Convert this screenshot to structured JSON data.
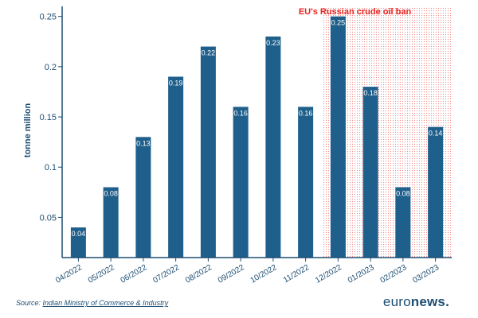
{
  "chart_data": {
    "type": "bar",
    "title": "",
    "xlabel": "",
    "ylabel": "tonne million",
    "ylim": [
      0.01,
      0.26
    ],
    "yticks": [
      0.05,
      0.1,
      0.15,
      0.2,
      0.25
    ],
    "ytick_labels": [
      "0.05",
      "0.1",
      "0.15",
      "0.2",
      "0.25"
    ],
    "categories": [
      "04/2022",
      "05/2022",
      "06/2022",
      "07/2022",
      "08/2022",
      "09/2022",
      "10/2022",
      "11/2022",
      "12/2022",
      "01/2023",
      "02/2023",
      "03/2023"
    ],
    "values": [
      0.04,
      0.08,
      0.13,
      0.19,
      0.22,
      0.16,
      0.23,
      0.16,
      0.25,
      0.18,
      0.08,
      0.14
    ],
    "value_labels": [
      "0.04",
      "0.08",
      "0.13",
      "0.19",
      "0.22",
      "0.16",
      "0.23",
      "0.16",
      "0.25",
      "0.18",
      "0.08",
      "0.14"
    ],
    "bar_color": "#1f5f8b",
    "grid": false,
    "annotation": {
      "text": "EU's Russian crude oil ban",
      "color": "#e8231f",
      "start_category": "12/2022",
      "end_category": "03/2023"
    }
  },
  "footer": {
    "source_prefix": "Source:",
    "source_link": "Indian Ministry of Commerce & Industry",
    "brand_light": "euro",
    "brand_bold": "news."
  }
}
